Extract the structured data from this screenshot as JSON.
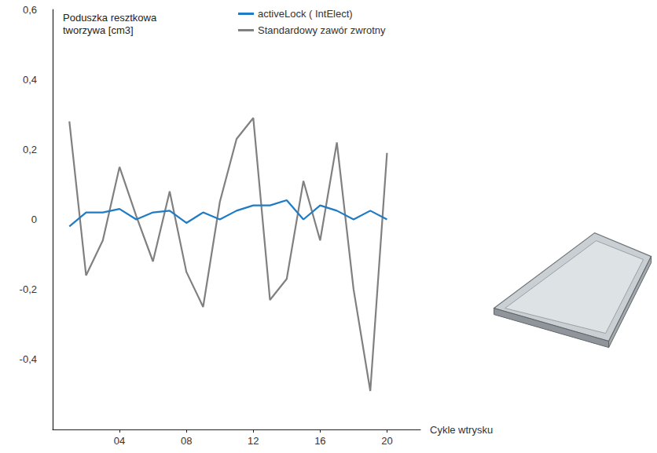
{
  "chart_data": {
    "type": "line",
    "y_label": "Poduszka resztkowa tworzywa [cm3]",
    "x_label": "Cykle wtrysku",
    "x": [
      1,
      2,
      3,
      4,
      5,
      6,
      7,
      8,
      9,
      10,
      11,
      12,
      13,
      14,
      15,
      16,
      17,
      18,
      19,
      20
    ],
    "series": [
      {
        "name": "activeLock ( IntElect)",
        "color": "#1f7bc4",
        "values": [
          -0.02,
          0.02,
          0.02,
          0.03,
          0.0,
          0.02,
          0.025,
          -0.01,
          0.02,
          0.0,
          0.025,
          0.04,
          0.04,
          0.055,
          0.0,
          0.04,
          0.025,
          0.0,
          0.025,
          0.0
        ]
      },
      {
        "name": "Standardowy zawór zwrotny",
        "color": "#808080",
        "values": [
          0.28,
          -0.16,
          -0.06,
          0.15,
          0.01,
          -0.12,
          0.08,
          -0.15,
          -0.25,
          0.05,
          0.23,
          0.29,
          -0.23,
          -0.17,
          0.11,
          -0.06,
          0.22,
          -0.2,
          -0.49,
          0.19
        ]
      }
    ],
    "xlim": [
      0,
      22
    ],
    "xticks": [
      {
        "value": 4,
        "label": "04"
      },
      {
        "value": 8,
        "label": "08"
      },
      12,
      16,
      20
    ],
    "ylim": [
      -0.6,
      0.6
    ],
    "yticks": [
      {
        "value": -0.4,
        "label": "-0,4"
      },
      {
        "value": -0.2,
        "label": "-0,2"
      },
      0,
      {
        "value": 0.2,
        "label": "0,2"
      },
      {
        "value": 0.4,
        "label": "0,4"
      },
      {
        "value": 0.6,
        "label": "0,6"
      }
    ],
    "grid": false,
    "legend": "top",
    "marker": "none",
    "line_style": "solid"
  }
}
